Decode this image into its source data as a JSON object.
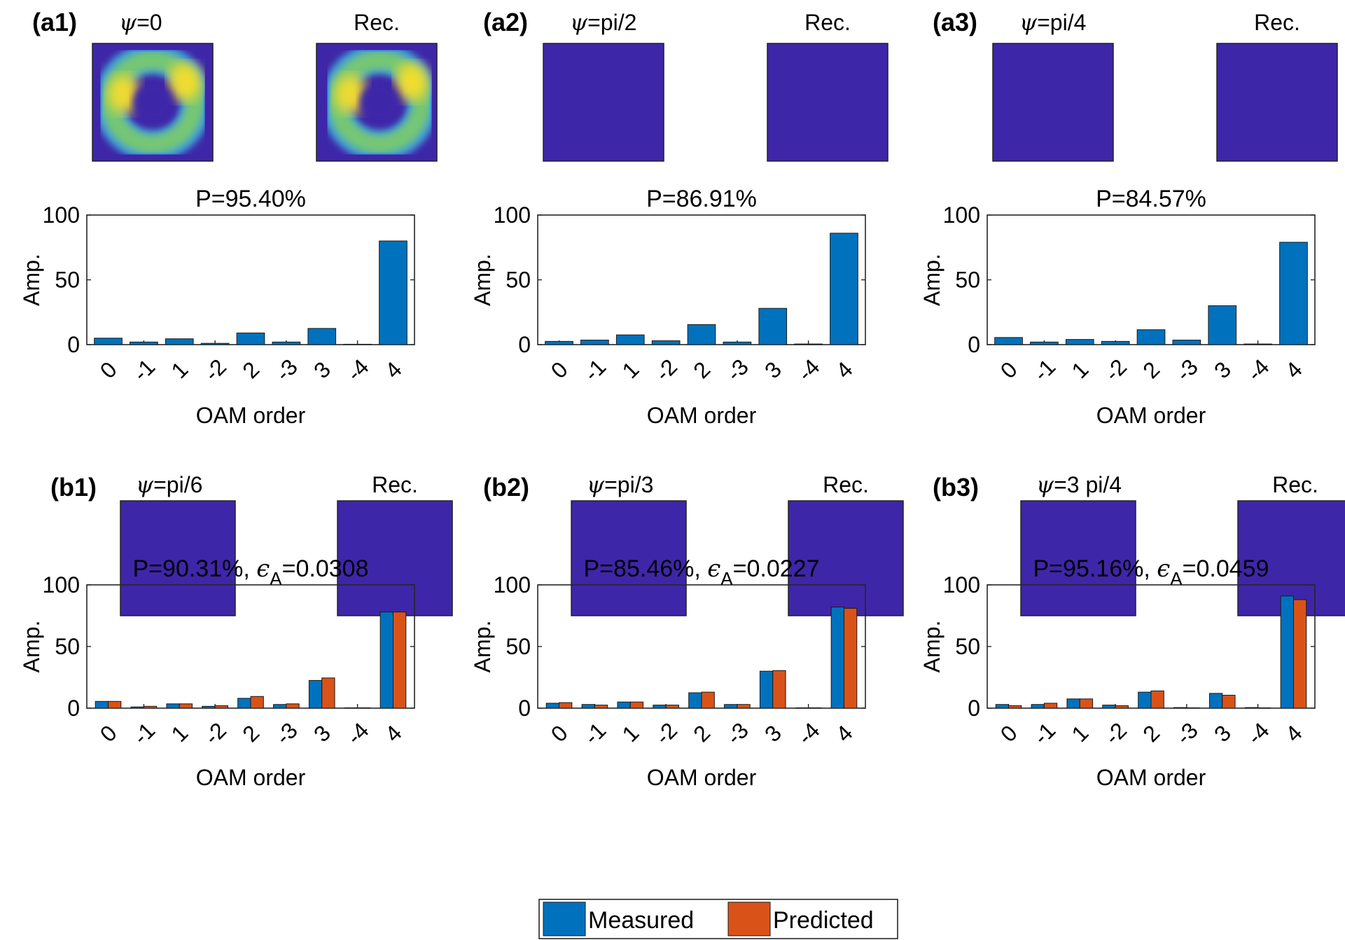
{
  "legend": {
    "items": [
      {
        "label": "Measured",
        "color": "#0072BD"
      },
      {
        "label": "Predicted",
        "color": "#D95319"
      }
    ]
  },
  "colors": {
    "measured": "#0072BD",
    "predicted": "#D95319",
    "beam_background": "#3E26A8",
    "beam_mid": "#26A7E0",
    "beam_peak": "#F9D825"
  },
  "panels": [
    {
      "tag": "(a1)",
      "psi_symbol": "ψ",
      "psi_value": "=0",
      "rec_label": "Rec.",
      "title_prefix": "P=95.40%",
      "title_eps": ""
    },
    {
      "tag": "(a2)",
      "psi_symbol": "ψ",
      "psi_value": "=pi/2",
      "rec_label": "Rec.",
      "title_prefix": "P=86.91%",
      "title_eps": ""
    },
    {
      "tag": "(a3)",
      "psi_symbol": "ψ",
      "psi_value": "=pi/4",
      "rec_label": "Rec.",
      "title_prefix": "P=84.57%",
      "title_eps": ""
    },
    {
      "tag": "(b1)",
      "psi_symbol": "ψ",
      "psi_value": "=pi/6",
      "rec_label": "Rec.",
      "title_prefix": "P=90.31%, ",
      "title_eps": "=0.0308"
    },
    {
      "tag": "(b2)",
      "psi_symbol": "ψ",
      "psi_value": "=pi/3",
      "rec_label": "Rec.",
      "title_prefix": "P=85.46%, ",
      "title_eps": "=0.0227"
    },
    {
      "tag": "(b3)",
      "psi_symbol": "ψ",
      "psi_value": "=3 pi/4",
      "rec_label": "Rec.",
      "title_prefix": "P=95.16%, ",
      "title_eps": "=0.0459"
    }
  ],
  "epsilon_symbol": "ϵ",
  "epsilon_subscript": "A",
  "chart_data": [
    {
      "type": "bar",
      "title": "P=95.40%",
      "xlabel": "OAM order",
      "ylabel": "Amp.",
      "ylim": [
        0,
        100
      ],
      "yticks": [
        0,
        50,
        100
      ],
      "categories": [
        "0",
        "-1",
        "1",
        "-2",
        "2",
        "-3",
        "3",
        "-4",
        "4"
      ],
      "series": [
        {
          "name": "Measured",
          "values": [
            5,
            2,
            4.5,
            1,
            9,
            2,
            12.5,
            0.3,
            80
          ]
        }
      ]
    },
    {
      "type": "bar",
      "title": "P=86.91%",
      "xlabel": "OAM order",
      "ylabel": "Amp.",
      "ylim": [
        0,
        100
      ],
      "yticks": [
        0,
        50,
        100
      ],
      "categories": [
        "0",
        "-1",
        "1",
        "-2",
        "2",
        "-3",
        "3",
        "-4",
        "4"
      ],
      "series": [
        {
          "name": "Measured",
          "values": [
            2.5,
            3.5,
            7.5,
            3,
            15.5,
            2,
            28,
            0.5,
            86
          ]
        }
      ]
    },
    {
      "type": "bar",
      "title": "P=84.57%",
      "xlabel": "OAM order",
      "ylabel": "Amp.",
      "ylim": [
        0,
        100
      ],
      "yticks": [
        0,
        50,
        100
      ],
      "categories": [
        "0",
        "-1",
        "1",
        "-2",
        "2",
        "-3",
        "3",
        "-4",
        "4"
      ],
      "series": [
        {
          "name": "Measured",
          "values": [
            5.5,
            2,
            4,
            2.5,
            11.5,
            3.5,
            30,
            0.5,
            79
          ]
        }
      ]
    },
    {
      "type": "bar",
      "title": "P=90.31%, ϵA=0.0308",
      "xlabel": "OAM order",
      "ylabel": "Amp.",
      "ylim": [
        0,
        100
      ],
      "yticks": [
        0,
        50,
        100
      ],
      "categories": [
        "0",
        "-1",
        "1",
        "-2",
        "2",
        "-3",
        "3",
        "-4",
        "4"
      ],
      "series": [
        {
          "name": "Measured",
          "values": [
            5.5,
            1,
            3.5,
            1.5,
            8,
            3,
            22.5,
            0.3,
            78
          ]
        },
        {
          "name": "Predicted",
          "values": [
            5.5,
            1.5,
            3.5,
            2,
            9.5,
            3.5,
            24.5,
            0.3,
            78
          ]
        }
      ]
    },
    {
      "type": "bar",
      "title": "P=85.46%, ϵA=0.0227",
      "xlabel": "OAM order",
      "ylabel": "Amp.",
      "ylim": [
        0,
        100
      ],
      "yticks": [
        0,
        50,
        100
      ],
      "categories": [
        "0",
        "-1",
        "1",
        "-2",
        "2",
        "-3",
        "3",
        "-4",
        "4"
      ],
      "series": [
        {
          "name": "Measured",
          "values": [
            4,
            3,
            5,
            2.5,
            12.5,
            3,
            30,
            0.3,
            82
          ]
        },
        {
          "name": "Predicted",
          "values": [
            4.5,
            2.5,
            5,
            2.5,
            13,
            3,
            30.5,
            0.3,
            81
          ]
        }
      ]
    },
    {
      "type": "bar",
      "title": "P=95.16%, ϵA=0.0459",
      "xlabel": "OAM order",
      "ylabel": "Amp.",
      "ylim": [
        0,
        100
      ],
      "yticks": [
        0,
        50,
        100
      ],
      "categories": [
        "0",
        "-1",
        "1",
        "-2",
        "2",
        "-3",
        "3",
        "-4",
        "4"
      ],
      "series": [
        {
          "name": "Measured",
          "values": [
            3,
            3,
            7.5,
            2.5,
            13,
            0.5,
            12,
            0.5,
            91
          ]
        },
        {
          "name": "Predicted",
          "values": [
            2,
            4,
            7.5,
            2,
            14,
            0.3,
            10.5,
            0.3,
            88
          ]
        }
      ]
    }
  ]
}
